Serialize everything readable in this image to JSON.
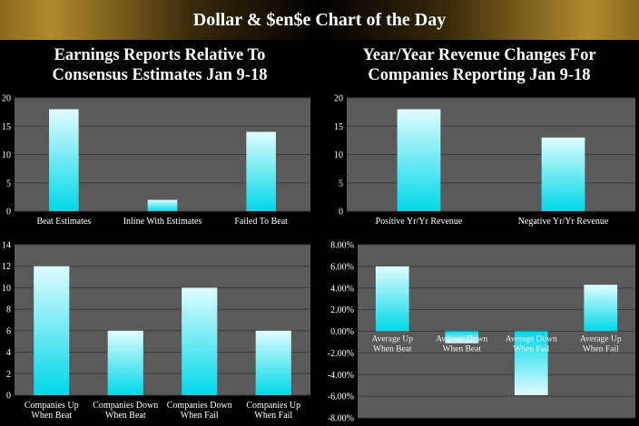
{
  "banner": {
    "title": "Dollar & $en$e Chart of the Day"
  },
  "panel_titles": {
    "left_line1": "Earnings Reports Relative To",
    "left_line2": "Consensus Estimates Jan 9-18",
    "right_line1": "Year/Year Revenue Changes For",
    "right_line2": "Companies Reporting Jan 9-18"
  },
  "colors": {
    "bar_top": "#dffcff",
    "bar_bottom": "#00d8e8",
    "plot_bg": "#5a5a5a",
    "gridline": "#3e3e3e",
    "axis_text": "#ffffff"
  },
  "chart_data": [
    {
      "type": "bar",
      "categories": [
        [
          "Beat Estimates"
        ],
        [
          "Inline With Estimates"
        ],
        [
          "Failed To Beat"
        ]
      ],
      "values": [
        18,
        2,
        14
      ],
      "ylim": [
        0,
        20
      ],
      "yticks": [
        0,
        5,
        10,
        15,
        20
      ],
      "tick_labels": [
        "0",
        "5",
        "10",
        "15",
        "20"
      ],
      "grid": true
    },
    {
      "type": "bar",
      "categories": [
        [
          "Positive Yr/Yr Revenue"
        ],
        [
          "Negative Yr/Yr Revenue"
        ]
      ],
      "values": [
        18,
        13
      ],
      "ylim": [
        0,
        20
      ],
      "yticks": [
        0,
        5,
        10,
        15,
        20
      ],
      "tick_labels": [
        "0",
        "5",
        "10",
        "15",
        "20"
      ],
      "grid": true
    },
    {
      "type": "bar",
      "categories": [
        [
          "Companies Up",
          "When Beat"
        ],
        [
          "Companies Down",
          "When Beat"
        ],
        [
          "Companies Down",
          "When Fail"
        ],
        [
          "Companies Up",
          "When Fail"
        ]
      ],
      "values": [
        12,
        6,
        10,
        6
      ],
      "ylim": [
        0,
        14
      ],
      "yticks": [
        0,
        2,
        4,
        6,
        8,
        10,
        12,
        14
      ],
      "tick_labels": [
        "0",
        "2",
        "4",
        "6",
        "8",
        "10",
        "12",
        "14"
      ],
      "grid": true
    },
    {
      "type": "bar",
      "categories": [
        [
          "Average Up",
          "When Beat"
        ],
        [
          "Average Down",
          "When Beat"
        ],
        [
          "Average Down",
          "When Fail"
        ],
        [
          "Average Up",
          "When Fail"
        ]
      ],
      "values": [
        6.0,
        -1.1,
        -5.9,
        4.3
      ],
      "ylim": [
        -8,
        8
      ],
      "yticks": [
        -8,
        -6,
        -4,
        -2,
        0,
        2,
        4,
        6,
        8
      ],
      "tick_labels": [
        "-8.00%",
        "-6.00%",
        "-4.00%",
        "-2.00%",
        "0.00%",
        "2.00%",
        "4.00%",
        "6.00%",
        "8.00%"
      ],
      "grid": true,
      "labels_at_zero": true
    }
  ]
}
